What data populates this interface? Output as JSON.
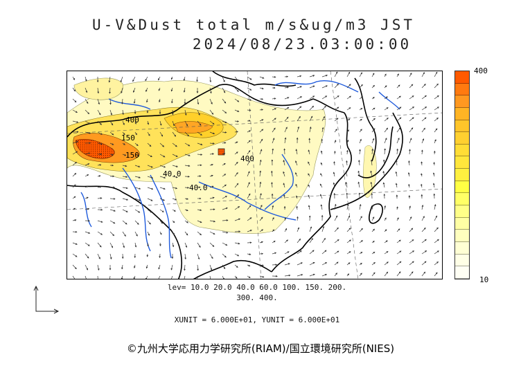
{
  "title_line1": "U-V&Dust total m/s&ug/m3 JST",
  "title_line2": "2024/08/23.03:00:00",
  "colorbar": {
    "max_label": "400",
    "min_label": "10",
    "colors": [
      "#ff5a00",
      "#ff7a10",
      "#ff9820",
      "#ffb424",
      "#ffc52a",
      "#ffd030",
      "#ffdd36",
      "#ffe63c",
      "#fff040",
      "#ffff44",
      "#ffff66",
      "#ffff88",
      "#ffffa4",
      "#ffffbe",
      "#ffffd4",
      "#ffffe6",
      "#fffff4"
    ]
  },
  "levels_line1": "lev= 10.0 20.0 40.0 60.0 100. 150. 200.",
  "levels_line2": "300. 400.",
  "units_line": "XUNIT = 6.000E+01, YUNIT = 6.000E+01",
  "contour_labels": [
    "400",
    "150",
    "150",
    "40.0",
    "40.0",
    "400"
  ],
  "copyright": "©九州大学応用力学研究所(RIAM)/国立環境研究所(NIES)",
  "colors": {
    "river": "#1e5adc",
    "coast": "#000000",
    "plume_high": "#ff5a00",
    "plume_mid": "#ffd02a",
    "plume_low": "#fff7a8"
  }
}
